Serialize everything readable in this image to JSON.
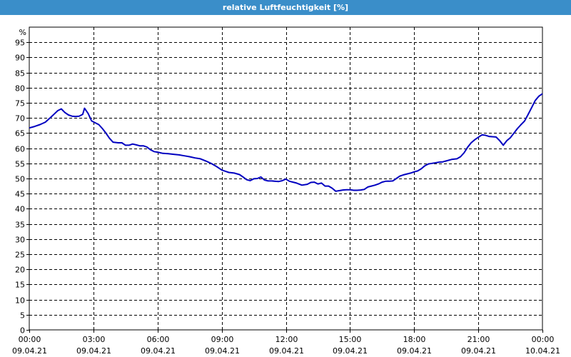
{
  "window": {
    "title": "relative Luftfeuchtigkeit [%]",
    "title_bar_color": "#3a8ec9"
  },
  "chart_data": {
    "type": "line",
    "title": "relative Luftfeuchtigkeit [%]",
    "ylabel": "%",
    "xlabel": "",
    "ylim": [
      0,
      100
    ],
    "y_ticks": [
      0,
      5,
      10,
      15,
      20,
      25,
      30,
      35,
      40,
      45,
      50,
      55,
      60,
      65,
      70,
      75,
      80,
      85,
      90,
      95
    ],
    "x_range": [
      "09.04.21 00:00",
      "10.04.21 00:00"
    ],
    "x_ticks": [
      {
        "time": "00:00",
        "date": "09.04.21"
      },
      {
        "time": "03:00",
        "date": "09.04.21"
      },
      {
        "time": "06:00",
        "date": "09.04.21"
      },
      {
        "time": "09:00",
        "date": "09.04.21"
      },
      {
        "time": "12:00",
        "date": "09.04.21"
      },
      {
        "time": "15:00",
        "date": "09.04.21"
      },
      {
        "time": "18:00",
        "date": "09.04.21"
      },
      {
        "time": "21:00",
        "date": "09.04.21"
      },
      {
        "time": "00:00",
        "date": "10.04.21"
      }
    ],
    "grid": true,
    "line_color": "#0000c0",
    "series": [
      {
        "x": [
          "00:00",
          "00:15",
          "00:30",
          "00:45",
          "01:00",
          "01:10",
          "01:20",
          "01:30",
          "01:40",
          "01:50",
          "02:00",
          "02:10",
          "02:20",
          "02:30",
          "02:35",
          "02:45",
          "02:55",
          "03:05",
          "03:15",
          "03:25",
          "03:35",
          "03:45",
          "03:55",
          "04:10",
          "04:20",
          "04:30",
          "04:40",
          "04:50",
          "05:00",
          "05:10",
          "05:20",
          "05:30",
          "05:40",
          "05:50",
          "06:00",
          "06:15",
          "06:30",
          "06:45",
          "07:00",
          "07:15",
          "07:30",
          "07:45",
          "08:00",
          "08:15",
          "08:30",
          "08:45",
          "09:00",
          "09:10",
          "09:20",
          "09:35",
          "09:50",
          "10:00",
          "10:10",
          "10:20",
          "10:30",
          "10:40",
          "10:50",
          "11:00",
          "11:10",
          "11:20",
          "11:40",
          "11:50",
          "12:00",
          "12:10",
          "12:20",
          "12:30",
          "12:45",
          "13:00",
          "13:10",
          "13:20",
          "13:30",
          "13:40",
          "13:50",
          "14:00",
          "14:10",
          "14:20",
          "14:30",
          "14:40",
          "14:50",
          "15:00",
          "15:10",
          "15:20",
          "15:30",
          "15:40",
          "15:50",
          "16:00",
          "16:10",
          "16:20",
          "16:30",
          "16:40",
          "16:50",
          "17:00",
          "17:10",
          "17:20",
          "17:30",
          "17:40",
          "17:50",
          "18:00",
          "18:10",
          "18:20",
          "18:30",
          "18:40",
          "18:50",
          "19:00",
          "19:10",
          "19:20",
          "19:30",
          "19:45",
          "20:00",
          "20:10",
          "20:20",
          "20:30",
          "20:40",
          "20:50",
          "21:00",
          "21:10",
          "21:20",
          "21:30",
          "21:40",
          "21:50",
          "22:00",
          "22:10",
          "22:20",
          "22:30",
          "22:40",
          "22:50",
          "23:00",
          "23:10",
          "23:20",
          "23:30",
          "23:40",
          "23:50",
          "24:00"
        ],
        "values": [
          66.7,
          67.2,
          67.8,
          68.6,
          70.2,
          71.3,
          72.4,
          73.0,
          71.8,
          71.0,
          70.6,
          70.5,
          70.6,
          71.2,
          73.2,
          71.5,
          69.0,
          68.4,
          67.8,
          66.5,
          65.0,
          63.3,
          62.0,
          61.8,
          61.8,
          61.0,
          61.0,
          61.4,
          61.1,
          60.8,
          60.8,
          60.4,
          59.5,
          58.9,
          58.7,
          58.3,
          58.2,
          58.0,
          57.8,
          57.5,
          57.2,
          56.8,
          56.5,
          55.8,
          55.0,
          54.0,
          52.8,
          52.4,
          52.0,
          51.8,
          51.3,
          50.5,
          49.6,
          49.3,
          49.9,
          50.0,
          50.5,
          49.5,
          49.2,
          49.2,
          49.0,
          49.3,
          49.8,
          49.1,
          48.8,
          48.5,
          47.8,
          48.1,
          48.7,
          48.8,
          48.2,
          48.5,
          47.5,
          47.5,
          46.8,
          45.8,
          46.0,
          46.2,
          46.3,
          46.3,
          46.1,
          46.1,
          46.2,
          46.4,
          47.2,
          47.5,
          47.8,
          48.2,
          48.8,
          49.1,
          49.1,
          49.2,
          50.0,
          50.8,
          51.2,
          51.5,
          51.8,
          52.2,
          52.5,
          53.2,
          54.2,
          54.8,
          55.0,
          55.2,
          55.4,
          55.5,
          55.8,
          56.3,
          56.5,
          57.2,
          58.5,
          60.3,
          61.8,
          62.8,
          63.6,
          64.4,
          64.3,
          63.9,
          63.8,
          63.7,
          62.5,
          61.0,
          62.5,
          63.5,
          65.0,
          66.5,
          67.8,
          69.0,
          71.2,
          73.5,
          75.8,
          77.2,
          78.0
        ]
      }
    ]
  }
}
